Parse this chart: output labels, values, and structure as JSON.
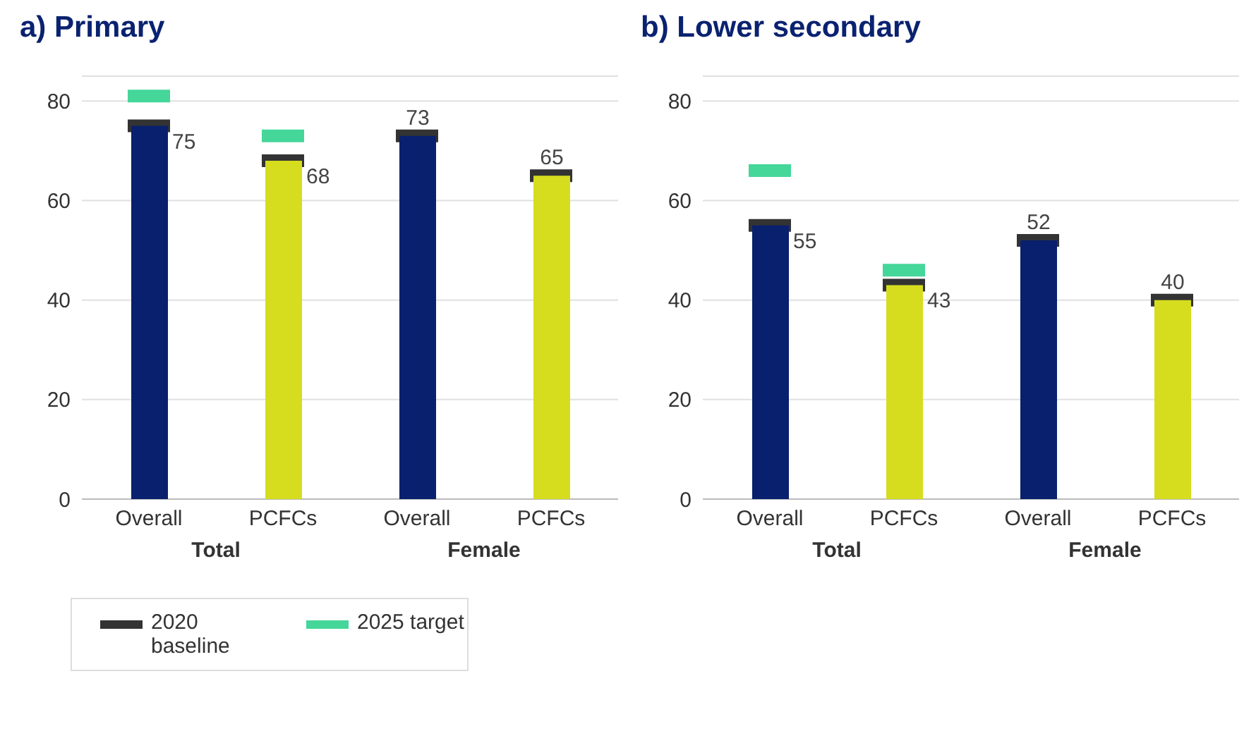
{
  "chart_data": [
    {
      "type": "bar",
      "title": "a) Primary",
      "categories": [
        "Overall",
        "PCFCs",
        "Overall",
        "PCFCs"
      ],
      "ylim": [
        0,
        85
      ],
      "yticks": [
        0,
        20,
        40,
        60,
        80
      ],
      "grid": "y",
      "legend": "bottom",
      "marker": "square",
      "annotations": [
        "Total",
        "Female"
      ],
      "series": [
        {
          "type": "bar",
          "colors": [
            "#08206e",
            "#d6dd1f",
            "#08206e",
            "#d6dd1f"
          ],
          "values": [
            75,
            68,
            73,
            65
          ],
          "data_labels": true
        },
        {
          "type": "scatter",
          "name": "2020 baseline",
          "color": "#333333",
          "values": [
            75,
            68,
            73,
            65
          ]
        },
        {
          "type": "scatter",
          "name": "2025 target",
          "color": "#45d699",
          "values": [
            81,
            73,
            null,
            null
          ]
        }
      ]
    },
    {
      "type": "bar",
      "title": "b) Lower secondary",
      "categories": [
        "Overall",
        "PCFCs",
        "Overall",
        "PCFCs"
      ],
      "ylim": [
        0,
        85
      ],
      "yticks": [
        0,
        20,
        40,
        60,
        80
      ],
      "grid": "y",
      "legend": false,
      "marker": "square",
      "annotations": [
        "Total",
        "Female"
      ],
      "series": [
        {
          "type": "bar",
          "colors": [
            "#08206e",
            "#d6dd1f",
            "#08206e",
            "#d6dd1f"
          ],
          "values": [
            55,
            43,
            52,
            40
          ],
          "data_labels": true
        },
        {
          "type": "scatter",
          "color": "#333333",
          "values": [
            55,
            43,
            52,
            40
          ]
        },
        {
          "type": "scatter",
          "color": "#45d699",
          "values": [
            66,
            46,
            null,
            null
          ]
        }
      ]
    }
  ]
}
